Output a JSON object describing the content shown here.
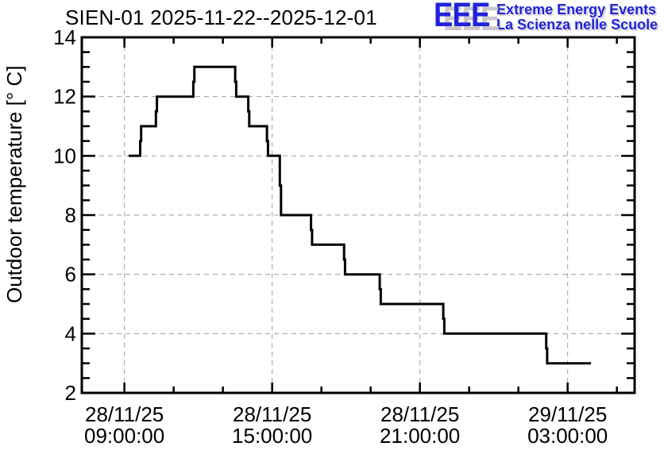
{
  "chart": {
    "title": "SIEN-01 2025-11-22--2025-12-01",
    "ylabel": "Outdoor temperature [° C]"
  },
  "logo": {
    "acronym": "EEE",
    "line1": "Extreme Energy Events",
    "line2": "La Scienza nelle Scuole",
    "color": "#2222dd",
    "shadow_color": "#c8c8c8"
  },
  "chart_data": {
    "type": "line",
    "step": true,
    "title": "SIEN-01 2025-11-22--2025-12-01",
    "xlabel": "",
    "ylabel": "Outdoor temperature [° C]",
    "x_unit": "hours since 2025-11-28 00:00:00",
    "xlim": [
      7.27,
      29.72
    ],
    "ylim": [
      2,
      14
    ],
    "grid": true,
    "legend": "none",
    "line_color": "#000000",
    "grid_color": "#9e9e9e",
    "frame_color": "#000000",
    "x_major_ticks": [
      {
        "t": 9,
        "date": "28/11/25",
        "time": "09:00:00"
      },
      {
        "t": 15,
        "date": "28/11/25",
        "time": "15:00:00"
      },
      {
        "t": 21,
        "date": "28/11/25",
        "time": "21:00:00"
      },
      {
        "t": 27,
        "date": "29/11/25",
        "time": "03:00:00"
      }
    ],
    "x_minor_step": 2,
    "y_major_step": 2,
    "y_minor_step": 0.5,
    "y_tick_labels": [
      "2",
      "4",
      "6",
      "8",
      "10",
      "12",
      "14"
    ],
    "points": [
      [
        9.17,
        10
      ],
      [
        9.64,
        10.5
      ],
      [
        9.68,
        11
      ],
      [
        10.28,
        11.5
      ],
      [
        10.32,
        12
      ],
      [
        11.8,
        12.5
      ],
      [
        11.84,
        13
      ],
      [
        13.5,
        12.5
      ],
      [
        13.54,
        12
      ],
      [
        14.03,
        11.5
      ],
      [
        14.07,
        11
      ],
      [
        14.79,
        10.5
      ],
      [
        14.83,
        10
      ],
      [
        15.31,
        9
      ],
      [
        15.36,
        8
      ],
      [
        16.58,
        7.5
      ],
      [
        16.62,
        7
      ],
      [
        17.92,
        6.5
      ],
      [
        17.96,
        6
      ],
      [
        19.37,
        5.5
      ],
      [
        19.41,
        5
      ],
      [
        21.95,
        4.5
      ],
      [
        21.99,
        4
      ],
      [
        26.13,
        3.5
      ],
      [
        26.17,
        3
      ],
      [
        27.95,
        3
      ]
    ]
  }
}
